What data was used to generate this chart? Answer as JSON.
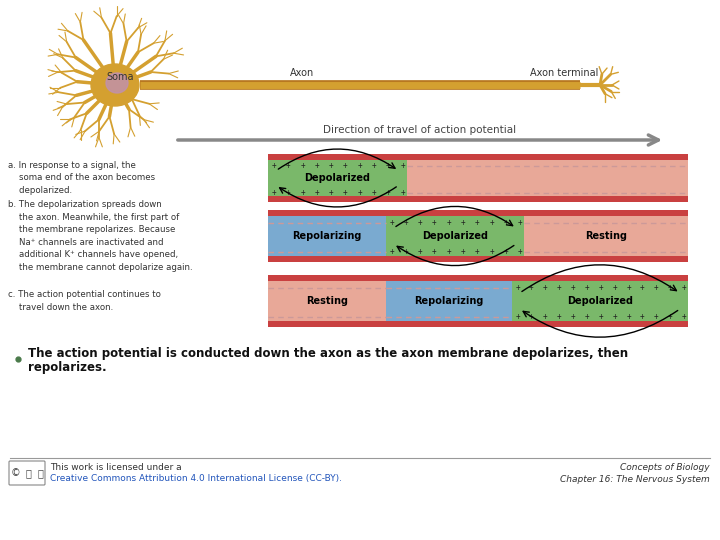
{
  "bg_color": "#ffffff",
  "bullet_color": "#4a7a4a",
  "bullet_text_line1": "The action potential is conducted down the axon as the axon membrane depolarizes, then",
  "bullet_text_line2": "repolarizes.",
  "footer_left_line1": "This work is licensed under a",
  "footer_left_line2": "Creative Commons Attribution 4.0 International License (CC-BY).",
  "footer_right_line1": "Concepts of Biology",
  "footer_right_line2": "Chapter 16: The Nervous System",
  "direction_label": "Direction of travel of action potential",
  "panel_a_label": "a. In response to a signal, the\n    soma end of the axon becomes\n    depolarized.",
  "panel_b_label": "b. The depolarization spreads down\n    the axon. Meanwhile, the first part of\n    the membrane repolarizes. Because\n    Na⁺ channels are inactivated and\n    additional K⁺ channels have opened,\n    the membrane cannot depolarize again.",
  "panel_c_label": "c. The action potential continues to\n    travel down the axon.",
  "depolarized_label": "Depolarized",
  "repolarizing_label": "Repolarizing",
  "resting_label": "Resting",
  "color_red": "#c94040",
  "color_salmon": "#e8a898",
  "color_green": "#7ab86a",
  "color_blue": "#7aaad0",
  "soma_label": "Soma",
  "axon_label": "Axon",
  "axon_terminal_label": "Axon terminal",
  "neuron_color": "#d4a030",
  "neuron_dark": "#b87820",
  "soma_nucleus_color": "#c090b0"
}
